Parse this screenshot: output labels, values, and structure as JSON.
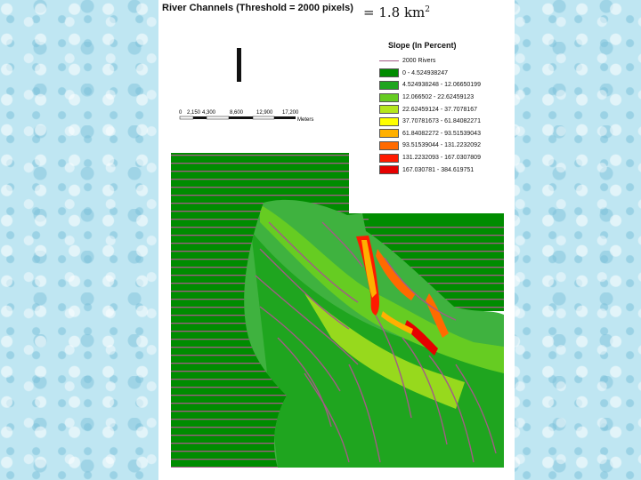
{
  "title": "River Channels (Threshold = 2000 pixels)",
  "area": {
    "prefix": "= 1.8 km",
    "exponent": "2"
  },
  "scale": {
    "ticks": [
      "0",
      "2,150",
      "4,300",
      "8,600",
      "12,900",
      "17,200"
    ],
    "unit": "Meters"
  },
  "legend": {
    "title": "Slope (In Percent)",
    "river_label": "2000 Rivers",
    "river_color": "#a25c86",
    "classes": [
      {
        "label": "0 - 4.524938247",
        "color": "#008c00"
      },
      {
        "label": "4.524938248 - 12.06650199",
        "color": "#1fa51f"
      },
      {
        "label": "12.066502 - 22.62459123",
        "color": "#66cc22"
      },
      {
        "label": "22.62459124 - 37.7078167",
        "color": "#b5e61d"
      },
      {
        "label": "37.70781673 - 61.84082271",
        "color": "#ffff00"
      },
      {
        "label": "61.84082272 - 93.51539043",
        "color": "#ffb000"
      },
      {
        "label": "93.51539044 - 131.2232092",
        "color": "#ff6a00"
      },
      {
        "label": "131.2232093 - 167.0307809",
        "color": "#ff1a00"
      },
      {
        "label": "167.030781 - 384.619751",
        "color": "#e60000"
      }
    ]
  }
}
